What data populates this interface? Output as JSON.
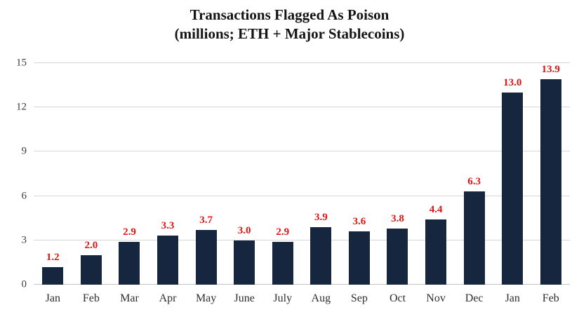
{
  "title": {
    "line1": "Transactions Flagged As Poison",
    "line2": "(millions; ETH + Major Stablecoins)"
  },
  "chart_data": {
    "type": "bar",
    "title": "Transactions Flagged As Poison (millions; ETH + Major Stablecoins)",
    "categories": [
      "Jan",
      "Feb",
      "Mar",
      "Apr",
      "May",
      "June",
      "July",
      "Aug",
      "Sep",
      "Oct",
      "Nov",
      "Dec",
      "Jan",
      "Feb"
    ],
    "values": [
      1.2,
      2.0,
      2.9,
      3.3,
      3.7,
      3.0,
      2.9,
      3.9,
      3.6,
      3.8,
      4.4,
      6.3,
      13.0,
      13.9
    ],
    "value_labels": [
      "1.2",
      "2.0",
      "2.9",
      "3.3",
      "3.7",
      "3.0",
      "2.9",
      "3.9",
      "3.6",
      "3.8",
      "4.4",
      "6.3",
      "13.0",
      "13.9"
    ],
    "xlabel": "",
    "ylabel": "",
    "ylim": [
      0,
      15
    ],
    "yticks": [
      0,
      3,
      6,
      9,
      12,
      15
    ],
    "ytick_labels": [
      "0",
      "3",
      "6",
      "9",
      "12",
      "15"
    ],
    "grid": true,
    "legend": "none",
    "bar_color": "#16263f",
    "value_label_color": "#e21414",
    "gridline_color": "#d6d6d6"
  }
}
